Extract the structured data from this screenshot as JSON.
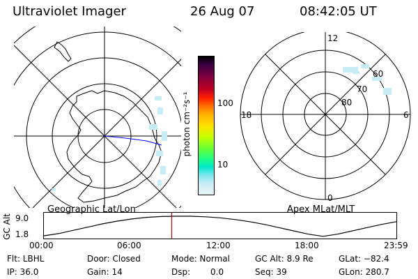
{
  "header": {
    "instrument": "Ultraviolet Imager",
    "date": "26 Aug 07",
    "time": "08:42:05 UT"
  },
  "left_panel": {
    "caption": "Geographic Lat/Lon"
  },
  "right_panel": {
    "caption": "Apex MLat/MLT",
    "mlt_labels": {
      "top": "12",
      "left": "18",
      "right": "6",
      "bottom": "0"
    },
    "mlat_labels": [
      "60",
      "70",
      "80"
    ]
  },
  "colorbar": {
    "unit_label": "photon cm⁻²s⁻¹",
    "ticks": [
      "100",
      "10"
    ],
    "colors": [
      "#000000",
      "#3b0040",
      "#7a0040",
      "#c00020",
      "#ff2000",
      "#ff7000",
      "#ffb000",
      "#ffe000",
      "#c8ff00",
      "#70ff30",
      "#20ff80",
      "#00e8c8",
      "#80e8f0",
      "#c8ecf4",
      "#e8f4f8"
    ]
  },
  "altitude_plot": {
    "ylabel": "GC Alt",
    "yticks": [
      "9.0",
      "1.8"
    ],
    "xticks": [
      "00:00",
      "06:00",
      "12:00",
      "18:00",
      "23:59"
    ],
    "marker_time_hours": 8.7,
    "series_hours": [
      0,
      1,
      2,
      3,
      4,
      5,
      6,
      7,
      8,
      9,
      10,
      11,
      12,
      13,
      14,
      15,
      16,
      17,
      18,
      19,
      20,
      21,
      22,
      23,
      24
    ],
    "series_alt_re": [
      1.8,
      2.6,
      3.8,
      5.0,
      6.2,
      7.2,
      8.0,
      8.6,
      8.9,
      9.0,
      9.0,
      8.8,
      8.4,
      7.8,
      7.0,
      6.0,
      4.8,
      3.6,
      2.4,
      1.6,
      2.4,
      3.6,
      4.8,
      6.0,
      7.0
    ]
  },
  "footer": {
    "flt": "Flt: LBHL",
    "ip": "IP: 36.0",
    "door": "Door: Closed",
    "gain": "Gain: 14",
    "mode": "Mode: Normal",
    "dsp_label": "Dsp:",
    "dsp_value": "0.0",
    "gc_alt": "GC Alt: 8.9 Re",
    "seq": "Seq: 39",
    "glat": "GLat: −82.4",
    "glon": "GLon: 280.7"
  }
}
